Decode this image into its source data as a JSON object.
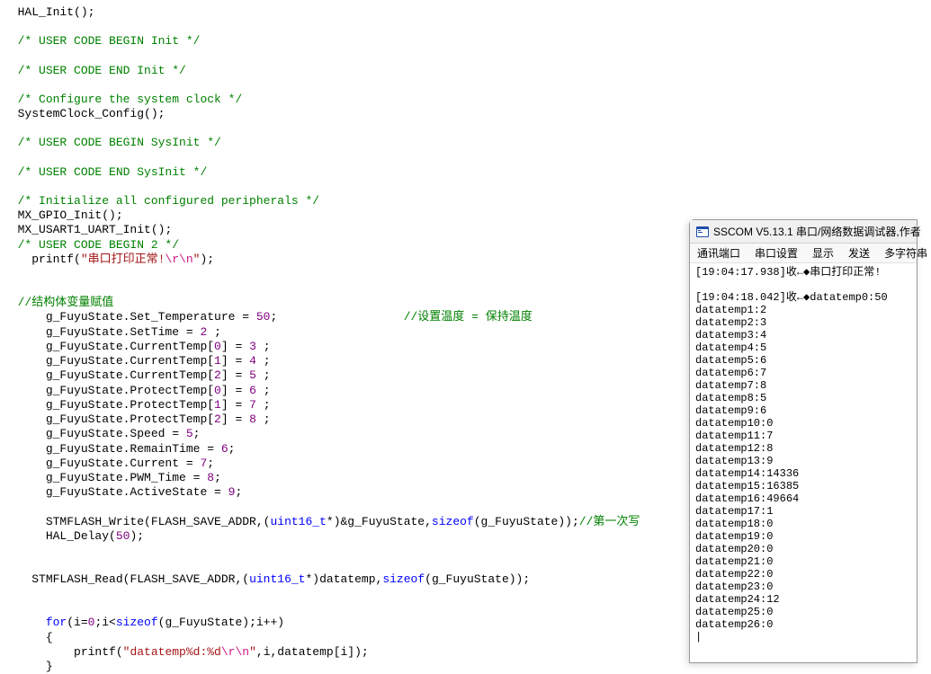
{
  "code": {
    "lines": [
      {
        "indent": 1,
        "segs": [
          {
            "cls": "c-func",
            "t": "HAL_Init"
          },
          {
            "cls": "c-op",
            "t": "();"
          }
        ]
      },
      {
        "indent": 0,
        "segs": []
      },
      {
        "indent": 1,
        "segs": [
          {
            "cls": "c-comment",
            "t": "/* USER CODE BEGIN Init */"
          }
        ]
      },
      {
        "indent": 0,
        "segs": []
      },
      {
        "indent": 1,
        "segs": [
          {
            "cls": "c-comment",
            "t": "/* USER CODE END Init */"
          }
        ]
      },
      {
        "indent": 0,
        "segs": []
      },
      {
        "indent": 1,
        "segs": [
          {
            "cls": "c-comment",
            "t": "/* Configure the system clock */"
          }
        ]
      },
      {
        "indent": 1,
        "segs": [
          {
            "cls": "c-func",
            "t": "SystemClock_Config"
          },
          {
            "cls": "c-op",
            "t": "();"
          }
        ]
      },
      {
        "indent": 0,
        "segs": []
      },
      {
        "indent": 1,
        "segs": [
          {
            "cls": "c-comment",
            "t": "/* USER CODE BEGIN SysInit */"
          }
        ]
      },
      {
        "indent": 0,
        "segs": []
      },
      {
        "indent": 1,
        "segs": [
          {
            "cls": "c-comment",
            "t": "/* USER CODE END SysInit */"
          }
        ]
      },
      {
        "indent": 0,
        "segs": []
      },
      {
        "indent": 1,
        "segs": [
          {
            "cls": "c-comment",
            "t": "/* Initialize all configured peripherals */"
          }
        ]
      },
      {
        "indent": 1,
        "segs": [
          {
            "cls": "c-func",
            "t": "MX_GPIO_Init"
          },
          {
            "cls": "c-op",
            "t": "();"
          }
        ]
      },
      {
        "indent": 1,
        "segs": [
          {
            "cls": "c-func",
            "t": "MX_USART1_UART_Init"
          },
          {
            "cls": "c-op",
            "t": "();"
          }
        ]
      },
      {
        "indent": 1,
        "segs": [
          {
            "cls": "c-comment",
            "t": "/* USER CODE BEGIN 2 */"
          }
        ]
      },
      {
        "indent": 2,
        "segs": [
          {
            "cls": "c-func",
            "t": "printf"
          },
          {
            "cls": "c-op",
            "t": "("
          },
          {
            "cls": "c-string",
            "t": "\"串口打印正常!"
          },
          {
            "cls": "c-escape",
            "t": "\\r\\n"
          },
          {
            "cls": "c-string",
            "t": "\""
          },
          {
            "cls": "c-op",
            "t": ");"
          }
        ]
      },
      {
        "indent": 0,
        "segs": []
      },
      {
        "indent": 0,
        "segs": []
      },
      {
        "indent": 1,
        "segs": [
          {
            "cls": "c-comment",
            "t": "//结构体变量赋值"
          }
        ]
      },
      {
        "indent": 3,
        "segs": [
          {
            "cls": "c-text",
            "t": "g_FuyuState.Set_Temperature = "
          },
          {
            "cls": "c-purple",
            "t": "50"
          },
          {
            "cls": "c-op",
            "t": ";                  "
          },
          {
            "cls": "c-comment",
            "t": "//设置温度 = 保持温度"
          }
        ]
      },
      {
        "indent": 3,
        "segs": [
          {
            "cls": "c-text",
            "t": "g_FuyuState.SetTime = "
          },
          {
            "cls": "c-purple",
            "t": "2"
          },
          {
            "cls": "c-op",
            "t": " ;"
          }
        ]
      },
      {
        "indent": 3,
        "segs": [
          {
            "cls": "c-text",
            "t": "g_FuyuState.CurrentTemp["
          },
          {
            "cls": "c-purple",
            "t": "0"
          },
          {
            "cls": "c-text",
            "t": "] = "
          },
          {
            "cls": "c-purple",
            "t": "3"
          },
          {
            "cls": "c-op",
            "t": " ;"
          }
        ]
      },
      {
        "indent": 3,
        "segs": [
          {
            "cls": "c-text",
            "t": "g_FuyuState.CurrentTemp["
          },
          {
            "cls": "c-purple",
            "t": "1"
          },
          {
            "cls": "c-text",
            "t": "] = "
          },
          {
            "cls": "c-purple",
            "t": "4"
          },
          {
            "cls": "c-op",
            "t": " ;"
          }
        ]
      },
      {
        "indent": 3,
        "segs": [
          {
            "cls": "c-text",
            "t": "g_FuyuState.CurrentTemp["
          },
          {
            "cls": "c-purple",
            "t": "2"
          },
          {
            "cls": "c-text",
            "t": "] = "
          },
          {
            "cls": "c-purple",
            "t": "5"
          },
          {
            "cls": "c-op",
            "t": " ;"
          }
        ]
      },
      {
        "indent": 3,
        "segs": [
          {
            "cls": "c-text",
            "t": "g_FuyuState.ProtectTemp["
          },
          {
            "cls": "c-purple",
            "t": "0"
          },
          {
            "cls": "c-text",
            "t": "] = "
          },
          {
            "cls": "c-purple",
            "t": "6"
          },
          {
            "cls": "c-op",
            "t": " ;"
          }
        ]
      },
      {
        "indent": 3,
        "segs": [
          {
            "cls": "c-text",
            "t": "g_FuyuState.ProtectTemp["
          },
          {
            "cls": "c-purple",
            "t": "1"
          },
          {
            "cls": "c-text",
            "t": "] = "
          },
          {
            "cls": "c-purple",
            "t": "7"
          },
          {
            "cls": "c-op",
            "t": " ;"
          }
        ]
      },
      {
        "indent": 3,
        "segs": [
          {
            "cls": "c-text",
            "t": "g_FuyuState.ProtectTemp["
          },
          {
            "cls": "c-purple",
            "t": "2"
          },
          {
            "cls": "c-text",
            "t": "] = "
          },
          {
            "cls": "c-purple",
            "t": "8"
          },
          {
            "cls": "c-op",
            "t": " ;"
          }
        ]
      },
      {
        "indent": 3,
        "segs": [
          {
            "cls": "c-text",
            "t": "g_FuyuState.Speed = "
          },
          {
            "cls": "c-purple",
            "t": "5"
          },
          {
            "cls": "c-op",
            "t": ";"
          }
        ]
      },
      {
        "indent": 3,
        "segs": [
          {
            "cls": "c-text",
            "t": "g_FuyuState.RemainTime = "
          },
          {
            "cls": "c-purple",
            "t": "6"
          },
          {
            "cls": "c-op",
            "t": ";"
          }
        ]
      },
      {
        "indent": 3,
        "segs": [
          {
            "cls": "c-text",
            "t": "g_FuyuState.Current = "
          },
          {
            "cls": "c-purple",
            "t": "7"
          },
          {
            "cls": "c-op",
            "t": ";"
          }
        ]
      },
      {
        "indent": 3,
        "segs": [
          {
            "cls": "c-text",
            "t": "g_FuyuState.PWM_Time = "
          },
          {
            "cls": "c-purple",
            "t": "8"
          },
          {
            "cls": "c-op",
            "t": ";"
          }
        ]
      },
      {
        "indent": 3,
        "segs": [
          {
            "cls": "c-text",
            "t": "g_FuyuState.ActiveState = "
          },
          {
            "cls": "c-purple",
            "t": "9"
          },
          {
            "cls": "c-op",
            "t": ";"
          }
        ]
      },
      {
        "indent": 0,
        "segs": []
      },
      {
        "indent": 3,
        "segs": [
          {
            "cls": "c-func",
            "t": "STMFLASH_Write"
          },
          {
            "cls": "c-op",
            "t": "(FLASH_SAVE_ADDR,("
          },
          {
            "cls": "c-keyword",
            "t": "uint16_t"
          },
          {
            "cls": "c-op",
            "t": "*)&g_FuyuState,"
          },
          {
            "cls": "c-keyword",
            "t": "sizeof"
          },
          {
            "cls": "c-op",
            "t": "(g_FuyuState));"
          },
          {
            "cls": "c-comment",
            "t": "//第一次写"
          }
        ]
      },
      {
        "indent": 3,
        "segs": [
          {
            "cls": "c-func",
            "t": "HAL_Delay"
          },
          {
            "cls": "c-op",
            "t": "("
          },
          {
            "cls": "c-purple",
            "t": "50"
          },
          {
            "cls": "c-op",
            "t": ");"
          }
        ]
      },
      {
        "indent": 0,
        "segs": []
      },
      {
        "indent": 0,
        "segs": []
      },
      {
        "indent": 2,
        "segs": [
          {
            "cls": "c-func",
            "t": "STMFLASH_Read"
          },
          {
            "cls": "c-op",
            "t": "(FLASH_SAVE_ADDR,("
          },
          {
            "cls": "c-keyword",
            "t": "uint16_t"
          },
          {
            "cls": "c-op",
            "t": "*)datatemp,"
          },
          {
            "cls": "c-keyword",
            "t": "sizeof"
          },
          {
            "cls": "c-op",
            "t": "(g_FuyuState));"
          }
        ]
      },
      {
        "indent": 0,
        "segs": []
      },
      {
        "indent": 0,
        "segs": []
      },
      {
        "indent": 3,
        "segs": [
          {
            "cls": "c-keyword",
            "t": "for"
          },
          {
            "cls": "c-op",
            "t": "(i="
          },
          {
            "cls": "c-purple",
            "t": "0"
          },
          {
            "cls": "c-op",
            "t": ";i<"
          },
          {
            "cls": "c-keyword",
            "t": "sizeof"
          },
          {
            "cls": "c-op",
            "t": "(g_FuyuState);i++)"
          }
        ]
      },
      {
        "indent": 3,
        "segs": [
          {
            "cls": "c-op",
            "t": "{"
          }
        ]
      },
      {
        "indent": 5,
        "segs": [
          {
            "cls": "c-func",
            "t": "printf"
          },
          {
            "cls": "c-op",
            "t": "("
          },
          {
            "cls": "c-string",
            "t": "\"datatemp%d:%d"
          },
          {
            "cls": "c-escape",
            "t": "\\r\\n"
          },
          {
            "cls": "c-string",
            "t": "\""
          },
          {
            "cls": "c-op",
            "t": ",i,datatemp[i]);"
          }
        ]
      },
      {
        "indent": 3,
        "segs": [
          {
            "cls": "c-op",
            "t": "}"
          }
        ]
      }
    ]
  },
  "terminal": {
    "title": "SSCOM V5.13.1 串口/网络数据调试器,作者",
    "menu": [
      "通讯端口",
      "串口设置",
      "显示",
      "发送",
      "多字符串"
    ],
    "output": [
      "[19:04:17.938]收←◆串口打印正常!",
      "",
      "[19:04:18.042]收←◆datatemp0:50",
      "datatemp1:2",
      "datatemp2:3",
      "datatemp3:4",
      "datatemp4:5",
      "datatemp5:6",
      "datatemp6:7",
      "datatemp7:8",
      "datatemp8:5",
      "datatemp9:6",
      "datatemp10:0",
      "datatemp11:7",
      "datatemp12:8",
      "datatemp13:9",
      "datatemp14:14336",
      "datatemp15:16385",
      "datatemp16:49664",
      "datatemp17:1",
      "datatemp18:0",
      "datatemp19:0",
      "datatemp20:0",
      "datatemp21:0",
      "datatemp22:0",
      "datatemp23:0",
      "datatemp24:12",
      "datatemp25:0",
      "datatemp26:0",
      "|"
    ]
  },
  "colors": {
    "comment": "#008000",
    "keyword": "#0000ff",
    "string": "#a31515",
    "escape": "#cd1a82",
    "purple": "#800080",
    "background": "#ffffff",
    "text": "#000000",
    "window_border": "#999999",
    "titlebar_bg": "#f0f0f0",
    "menubar_bg": "#f8f8f8"
  },
  "typography": {
    "code_font": "Consolas",
    "code_fontsize": 13,
    "terminal_font": "SimSun",
    "terminal_fontsize": 12
  }
}
